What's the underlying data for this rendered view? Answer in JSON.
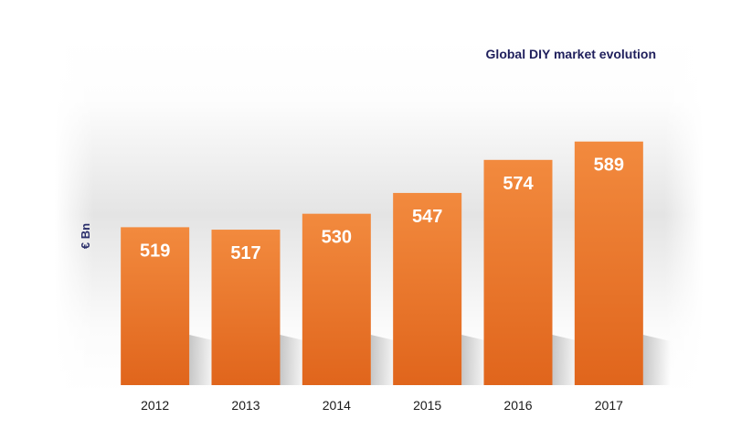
{
  "chart_data": {
    "type": "bar",
    "title": "Global DIY market evolution",
    "xlabel": "",
    "ylabel": "€ Bn",
    "categories": [
      "2012",
      "2013",
      "2014",
      "2015",
      "2016",
      "2017"
    ],
    "values": [
      519,
      517,
      530,
      547,
      574,
      589
    ],
    "data_labels": [
      "519",
      "517",
      "530",
      "547",
      "574",
      "589"
    ],
    "ylim": [
      390,
      600
    ],
    "grid": false,
    "legend": "none",
    "colors": {
      "bar": "#ee7a30",
      "bar_light": "#f28a3e",
      "bar_dark": "#e0651c",
      "title": "#1f1f5c",
      "ylabel": "#2b2f6b",
      "background_band": "#e6e6e6"
    }
  }
}
